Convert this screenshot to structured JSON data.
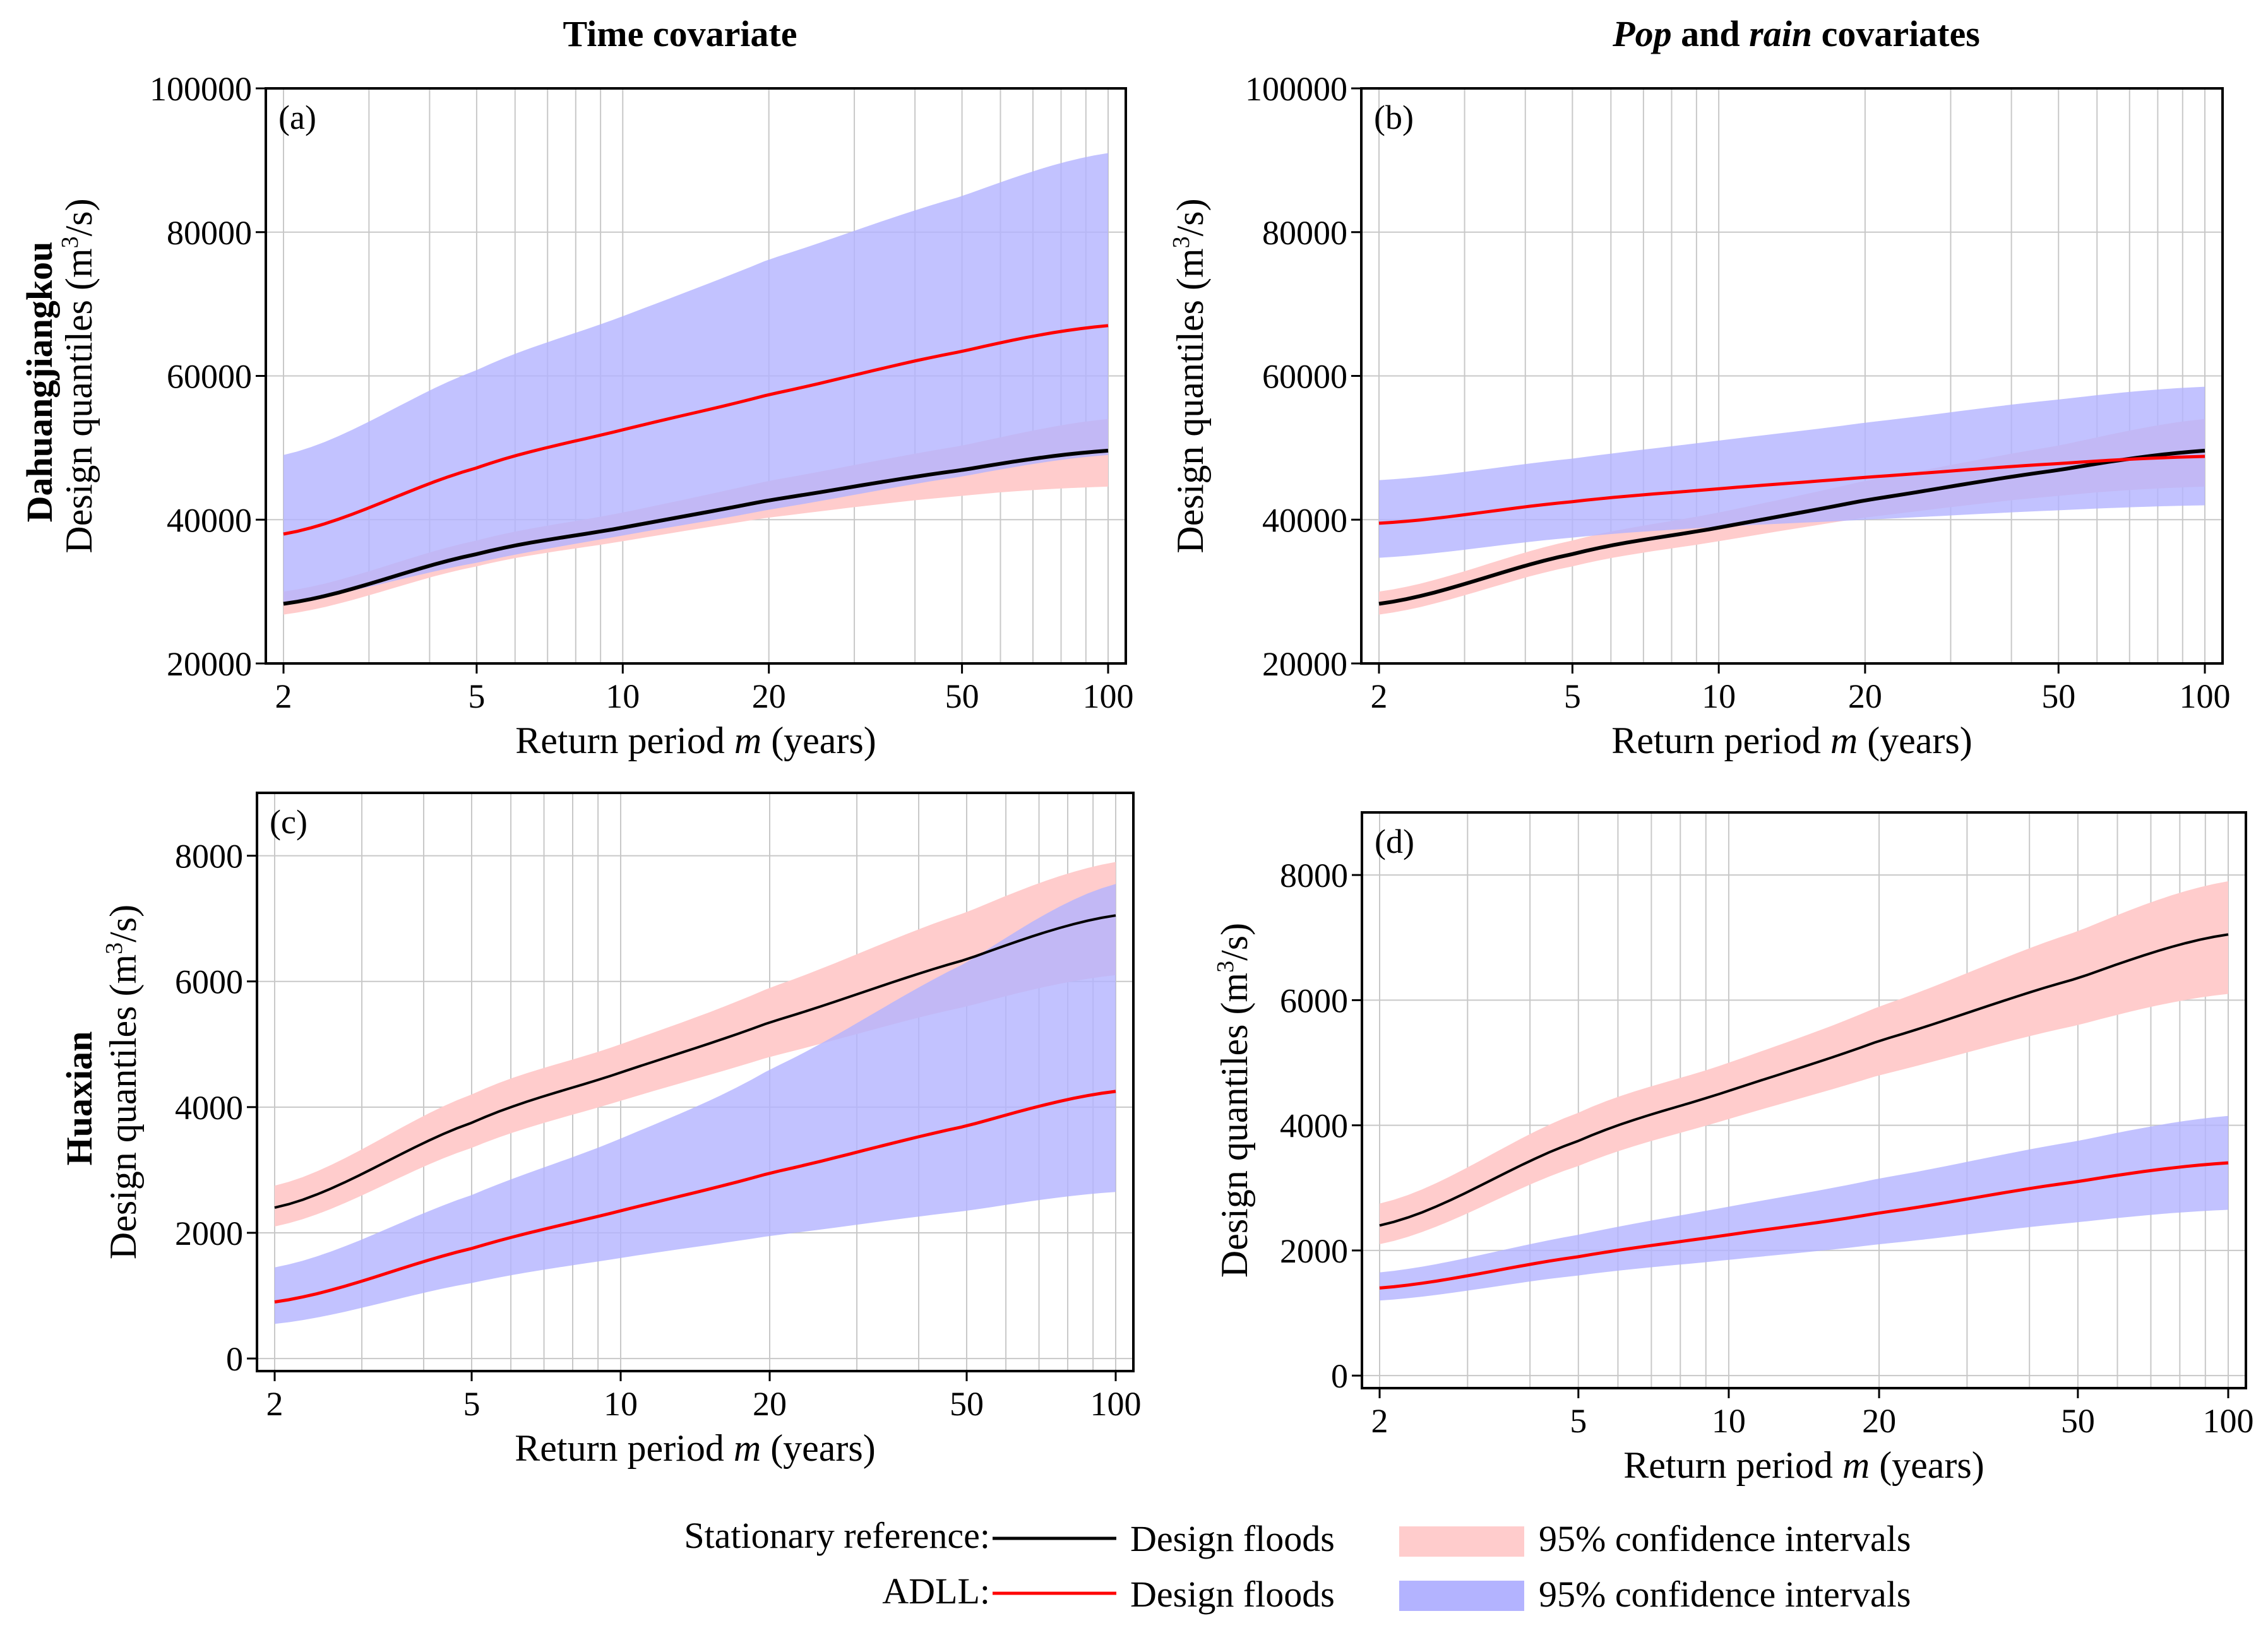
{
  "column_titles": {
    "left": "Time covariate",
    "right": {
      "pop": "Pop",
      "and": " and ",
      "rain": "rain",
      "rest": " covariates"
    }
  },
  "row_titles": [
    "Dahuangjiangkou",
    "Huaxian"
  ],
  "colors": {
    "stationary_line": "#000000",
    "adll_line": "#ff0000",
    "stationary_ci": "#ffcccc",
    "adll_ci": "#b3b3ff",
    "grid": "#c8c8c8"
  },
  "legend": {
    "stationary_label": "Stationary reference:",
    "adll_label": "ADLL:",
    "design_floods": "Design floods",
    "ci": "95% confidence intervals"
  },
  "chart_data": [
    {
      "panel": "(a)",
      "type": "line",
      "xscale": "log",
      "xlim": [
        2,
        100
      ],
      "xticks": [
        2,
        5,
        10,
        20,
        50,
        100
      ],
      "xlabel": {
        "pre": "Return period ",
        "var": "m",
        "post": " (years)"
      },
      "ylabel": {
        "pre": "Design quantiles (m",
        "sup": "3",
        "post": "/s)"
      },
      "ylim": [
        20000,
        100000
      ],
      "yticks": [
        20000,
        40000,
        60000,
        80000,
        100000
      ],
      "x": [
        2,
        5,
        10,
        20,
        50,
        100
      ],
      "series": [
        {
          "name": "Stationary reference",
          "values": [
            28300,
            35200,
            38900,
            42700,
            46900,
            49600
          ],
          "ci_lower": [
            26800,
            33500,
            37000,
            40300,
            43300,
            44600
          ],
          "ci_upper": [
            30000,
            37100,
            41000,
            45400,
            50300,
            54000
          ]
        },
        {
          "name": "ADLL",
          "values": [
            38000,
            47200,
            52500,
            57400,
            63400,
            67000
          ],
          "ci_lower": [
            28500,
            34000,
            37800,
            41400,
            46000,
            49000
          ],
          "ci_upper": [
            49000,
            60800,
            68300,
            76200,
            85000,
            91000
          ]
        }
      ]
    },
    {
      "panel": "(b)",
      "type": "line",
      "xscale": "log",
      "xlim": [
        2,
        100
      ],
      "xticks": [
        2,
        5,
        10,
        20,
        50,
        100
      ],
      "xlabel": {
        "pre": "Return period ",
        "var": "m",
        "post": " (years)"
      },
      "ylabel": {
        "pre": "Design quantiles (m",
        "sup": "3",
        "post": "/s)"
      },
      "ylim": [
        20000,
        100000
      ],
      "yticks": [
        20000,
        40000,
        60000,
        80000,
        100000
      ],
      "x": [
        2,
        5,
        10,
        20,
        50,
        100
      ],
      "series": [
        {
          "name": "Stationary reference",
          "values": [
            28300,
            35200,
            38900,
            42700,
            46900,
            49600
          ],
          "ci_lower": [
            26800,
            33500,
            37000,
            40300,
            43300,
            44600
          ],
          "ci_upper": [
            30000,
            37100,
            41000,
            45400,
            50300,
            54000
          ]
        },
        {
          "name": "ADLL",
          "values": [
            39500,
            42500,
            44300,
            45900,
            47800,
            48800
          ],
          "ci_lower": [
            34700,
            37500,
            39000,
            40000,
            41300,
            42000
          ],
          "ci_upper": [
            45500,
            48500,
            51000,
            53500,
            56700,
            58500
          ]
        }
      ]
    },
    {
      "panel": "(c)",
      "type": "line",
      "xscale": "log",
      "xlim": [
        2,
        100
      ],
      "xticks": [
        2,
        5,
        10,
        20,
        50,
        100
      ],
      "xlabel": {
        "pre": "Return period ",
        "var": "m",
        "post": " (years)"
      },
      "ylabel": {
        "pre": "Design quantiles (m",
        "sup": "3",
        "post": "/s)"
      },
      "ylim": [
        -200,
        9000
      ],
      "yticks": [
        0,
        2000,
        4000,
        6000,
        8000
      ],
      "x": [
        2,
        5,
        10,
        20,
        50,
        100
      ],
      "series": [
        {
          "name": "Stationary reference",
          "values": [
            2400,
            3750,
            4550,
            5350,
            6350,
            7050
          ],
          "ci_lower": [
            2100,
            3350,
            4100,
            4800,
            5600,
            6100
          ],
          "ci_upper": [
            2750,
            4200,
            5000,
            5900,
            7100,
            7900
          ]
        },
        {
          "name": "ADLL",
          "values": [
            900,
            1750,
            2350,
            2950,
            3700,
            4250
          ],
          "ci_lower": [
            550,
            1200,
            1600,
            1950,
            2350,
            2650
          ],
          "ci_upper": [
            1450,
            2600,
            3500,
            4600,
            6300,
            7550
          ]
        }
      ]
    },
    {
      "panel": "(d)",
      "type": "line",
      "xscale": "log",
      "xlim": [
        2,
        100
      ],
      "xticks": [
        2,
        5,
        10,
        20,
        50,
        100
      ],
      "xlabel": {
        "pre": "Return period ",
        "var": "m",
        "post": " (years)"
      },
      "ylabel": {
        "pre": "Design quantiles (m",
        "sup": "3",
        "post": "/s)"
      },
      "ylim": [
        -200,
        9000
      ],
      "yticks": [
        0,
        2000,
        4000,
        6000,
        8000
      ],
      "x": [
        2,
        5,
        10,
        20,
        50,
        100
      ],
      "series": [
        {
          "name": "Stationary reference",
          "values": [
            2400,
            3750,
            4550,
            5350,
            6350,
            7050
          ],
          "ci_lower": [
            2100,
            3350,
            4100,
            4800,
            5600,
            6100
          ],
          "ci_upper": [
            2750,
            4200,
            5000,
            5900,
            7100,
            7900
          ]
        },
        {
          "name": "ADLL",
          "values": [
            1400,
            1900,
            2250,
            2600,
            3100,
            3400
          ],
          "ci_lower": [
            1200,
            1600,
            1850,
            2100,
            2450,
            2650
          ],
          "ci_upper": [
            1650,
            2250,
            2700,
            3150,
            3750,
            4150
          ]
        }
      ]
    }
  ]
}
